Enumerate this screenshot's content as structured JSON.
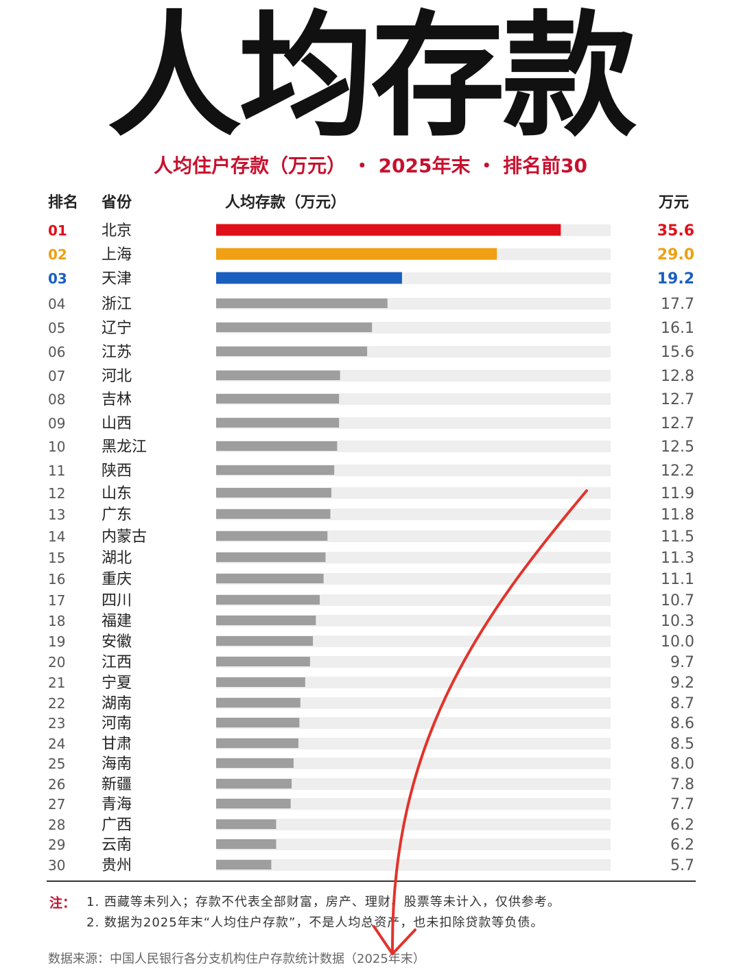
{
  "title": "人均存款",
  "subtitle": "人均住户存款（万元）  ・ 2025年末 ・ 排名前30",
  "headers": {
    "rank": "排名",
    "province": "省份",
    "bar": "人均存款（万元）",
    "unit": "万元"
  },
  "chart_data": {
    "type": "bar",
    "orientation": "horizontal",
    "title": "人均住户存款（万元）  ・ 2025年末 ・ 排名前30",
    "xlim": [
      0,
      40
    ],
    "categories": [
      "北京",
      "上海",
      "天津",
      "浙江",
      "辽宁",
      "江苏",
      "河北",
      "吉林",
      "山西",
      "黑龙江",
      "陕西",
      "山东",
      "广东",
      "内蒙古",
      "湖北",
      "重庆",
      "四川",
      "福建",
      "安徽",
      "江西",
      "宁夏",
      "湖南",
      "河南",
      "甘肃",
      "海南",
      "新疆",
      "青海",
      "广西",
      "云南",
      "贵州"
    ],
    "ranks": [
      "01",
      "02",
      "03",
      "04",
      "05",
      "06",
      "07",
      "08",
      "09",
      "10",
      "11",
      "12",
      "13",
      "14",
      "15",
      "16",
      "17",
      "18",
      "19",
      "20",
      "21",
      "22",
      "23",
      "24",
      "25",
      "26",
      "27",
      "28",
      "29",
      "30"
    ],
    "values": [
      35.6,
      29.0,
      19.2,
      17.7,
      16.1,
      15.6,
      12.8,
      12.7,
      12.7,
      12.5,
      12.2,
      11.9,
      11.8,
      11.5,
      11.3,
      11.1,
      10.7,
      10.3,
      10.0,
      9.7,
      9.2,
      8.7,
      8.6,
      8.5,
      8.0,
      7.8,
      7.7,
      6.2,
      6.2,
      5.7
    ],
    "value_labels": [
      "35.6",
      "29.0",
      "19.2",
      "17.7",
      "16.1",
      "15.6",
      "12.8",
      "12.7",
      "12.7",
      "12.5",
      "12.2",
      "11.9",
      "11.8",
      "11.5",
      "11.3",
      "11.1",
      "10.7",
      "10.3",
      "10.0",
      "9.7",
      "9.2",
      "8.7",
      "8.6",
      "8.5",
      "8.0",
      "7.8",
      "7.7",
      "6.2",
      "6.2",
      "5.7"
    ],
    "colors": {
      "top1": "#e0101a",
      "top2": "#f0a012",
      "top3": "#1a5fbf",
      "default": "#9e9e9e",
      "track": "#eeeeee"
    }
  },
  "notes": {
    "label": "注：",
    "line1": "1. 西藏等未列入；存款不代表全部财富，房产、理财、股票等未计入，仅供参考。",
    "line2": "2. 数据为2025年末“人均住户存款”，不是人均总资产，也未扣除贷款等负债。"
  },
  "source": "数据来源：中国人民银行各分支机构住户存款统计数据（2025年末）"
}
